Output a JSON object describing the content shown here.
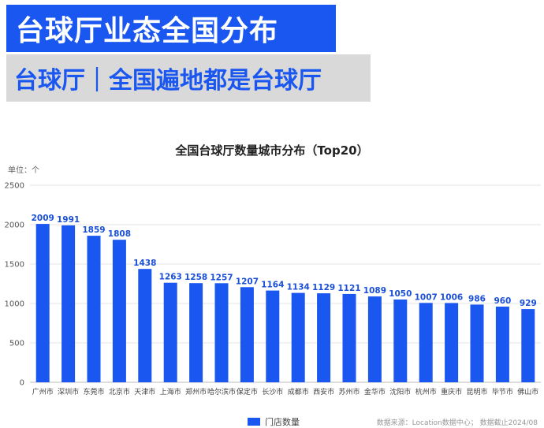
{
  "header": {
    "title": "台球厅业态全国分布",
    "subtitle": "台球厅｜全国遍地都是台球厅"
  },
  "colors": {
    "bar": "#1a56f0",
    "label": "#1a4fd8",
    "title_bg": "#1a56f0",
    "subtitle_bg": "#d9d9d9"
  },
  "chart_data": {
    "type": "bar",
    "title": "全国台球厅数量城市分布（Top20）",
    "unit_label": "单位：个",
    "categories": [
      "广州市",
      "深圳市",
      "东莞市",
      "北京市",
      "天津市",
      "上海市",
      "郑州市",
      "哈尔滨市",
      "保定市",
      "长沙市",
      "成都市",
      "西安市",
      "苏州市",
      "金华市",
      "沈阳市",
      "杭州市",
      "重庆市",
      "昆明市",
      "毕节市",
      "佛山市"
    ],
    "series": [
      {
        "name": "门店数量",
        "values": [
          2009,
          1991,
          1859,
          1808,
          1438,
          1263,
          1258,
          1257,
          1207,
          1164,
          1134,
          1129,
          1121,
          1089,
          1050,
          1007,
          1006,
          986,
          960,
          929
        ]
      }
    ],
    "ylim": [
      0,
      2500
    ],
    "yticks": [
      0,
      500,
      1000,
      1500,
      2000,
      2500
    ],
    "grid": true,
    "legend_position": "bottom"
  },
  "footer": {
    "source": "数据来源：Location数据中心；    数据截止2024/08"
  }
}
